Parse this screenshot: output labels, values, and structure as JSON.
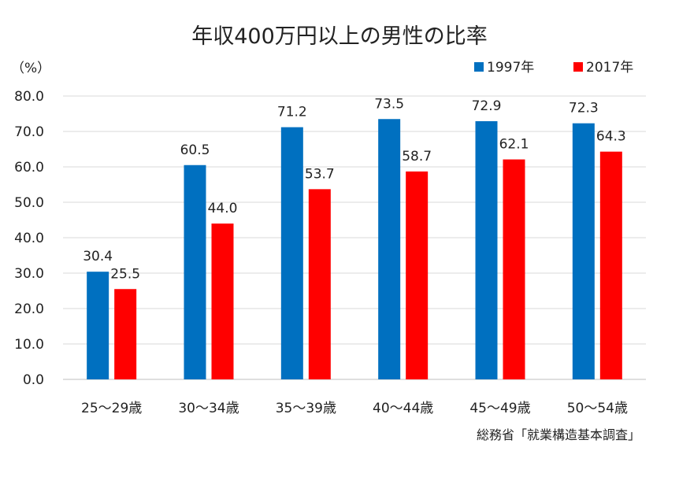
{
  "chart_data": {
    "type": "bar",
    "title": "年収400万円以上の男性の比率",
    "unit_label": "（%）",
    "source": "総務省「就業構造基本調査」",
    "categories": [
      "25～29歳",
      "30～34歳",
      "35～39歳",
      "40～44歳",
      "45～49歳",
      "50～54歳"
    ],
    "series": [
      {
        "name": "1997年",
        "values": [
          30.4,
          60.5,
          71.2,
          73.5,
          72.9,
          72.3
        ],
        "color": "#0070c0"
      },
      {
        "name": "2017年",
        "values": [
          25.5,
          44.0,
          53.7,
          58.7,
          62.1,
          64.3
        ],
        "color": "#ff0000"
      }
    ],
    "ylim": [
      0,
      80
    ],
    "yticks": [
      "0.0",
      "10.0",
      "20.0",
      "30.0",
      "40.0",
      "50.0",
      "60.0",
      "70.0",
      "80.0"
    ],
    "grid": true,
    "legend_position": "top-right"
  }
}
